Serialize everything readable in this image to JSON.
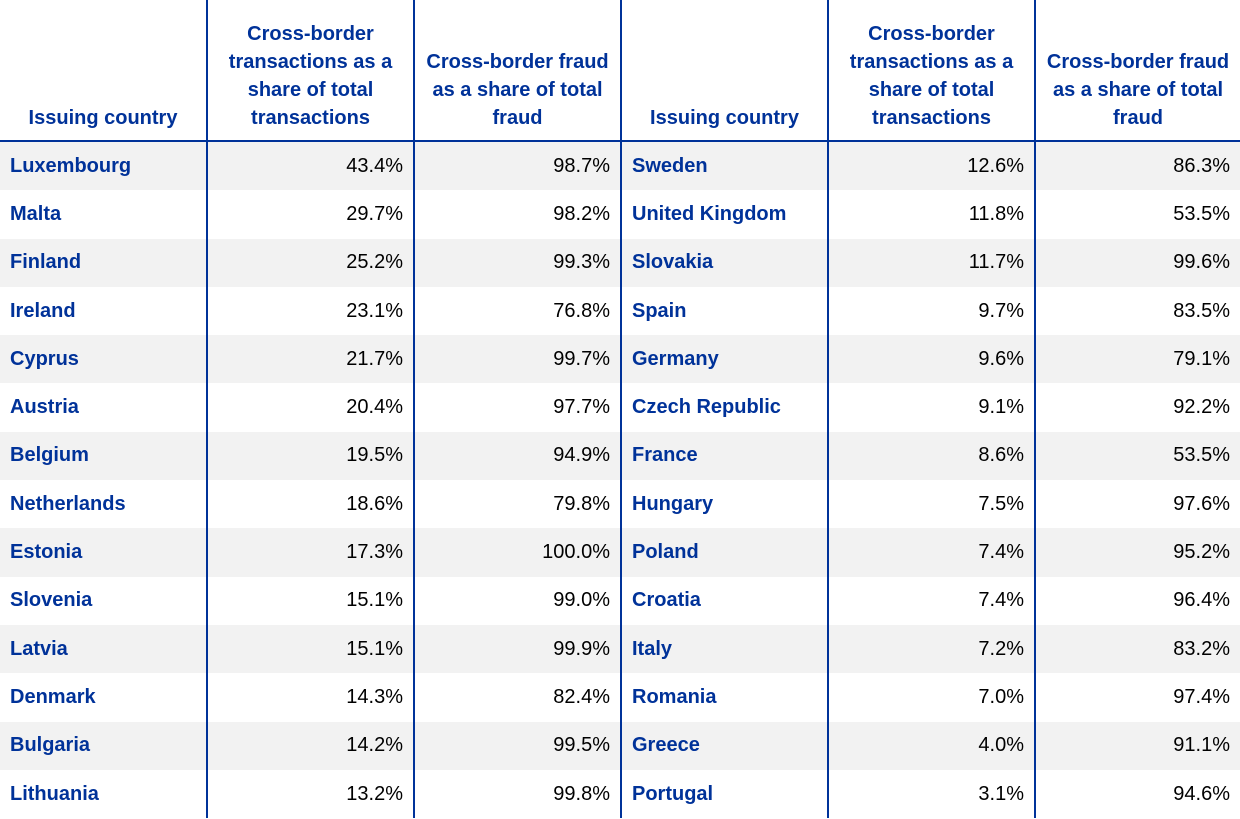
{
  "headers": {
    "country": "Issuing country",
    "tx_share": "Cross-border transactions as a share of total transactions",
    "fraud_share": "Cross-border fraud as a share of total fraud"
  },
  "left_rows": [
    {
      "country": "Luxembourg",
      "tx": "43.4%",
      "fraud": "98.7%"
    },
    {
      "country": "Malta",
      "tx": "29.7%",
      "fraud": "98.2%"
    },
    {
      "country": "Finland",
      "tx": "25.2%",
      "fraud": "99.3%"
    },
    {
      "country": "Ireland",
      "tx": "23.1%",
      "fraud": "76.8%"
    },
    {
      "country": "Cyprus",
      "tx": "21.7%",
      "fraud": "99.7%"
    },
    {
      "country": "Austria",
      "tx": "20.4%",
      "fraud": "97.7%"
    },
    {
      "country": "Belgium",
      "tx": "19.5%",
      "fraud": "94.9%"
    },
    {
      "country": "Netherlands",
      "tx": "18.6%",
      "fraud": "79.8%"
    },
    {
      "country": "Estonia",
      "tx": "17.3%",
      "fraud": "100.0%"
    },
    {
      "country": "Slovenia",
      "tx": "15.1%",
      "fraud": "99.0%"
    },
    {
      "country": "Latvia",
      "tx": "15.1%",
      "fraud": "99.9%"
    },
    {
      "country": "Denmark",
      "tx": "14.3%",
      "fraud": "82.4%"
    },
    {
      "country": "Bulgaria",
      "tx": "14.2%",
      "fraud": "99.5%"
    },
    {
      "country": "Lithuania",
      "tx": "13.2%",
      "fraud": "99.8%"
    }
  ],
  "right_rows": [
    {
      "country": "Sweden",
      "tx": "12.6%",
      "fraud": "86.3%"
    },
    {
      "country": "United Kingdom",
      "tx": "11.8%",
      "fraud": "53.5%"
    },
    {
      "country": "Slovakia",
      "tx": "11.7%",
      "fraud": "99.6%"
    },
    {
      "country": "Spain",
      "tx": "9.7%",
      "fraud": "83.5%"
    },
    {
      "country": "Germany",
      "tx": "9.6%",
      "fraud": "79.1%"
    },
    {
      "country": "Czech Republic",
      "tx": "9.1%",
      "fraud": "92.2%"
    },
    {
      "country": "France",
      "tx": "8.6%",
      "fraud": "53.5%"
    },
    {
      "country": "Hungary",
      "tx": "7.5%",
      "fraud": "97.6%"
    },
    {
      "country": "Poland",
      "tx": "7.4%",
      "fraud": "95.2%"
    },
    {
      "country": "Croatia",
      "tx": "7.4%",
      "fraud": "96.4%"
    },
    {
      "country": "Italy",
      "tx": "7.2%",
      "fraud": "83.2%"
    },
    {
      "country": "Romania",
      "tx": "7.0%",
      "fraud": "97.4%"
    },
    {
      "country": "Greece",
      "tx": "4.0%",
      "fraud": "91.1%"
    },
    {
      "country": "Portugal",
      "tx": "3.1%",
      "fraud": "94.6%"
    }
  ]
}
